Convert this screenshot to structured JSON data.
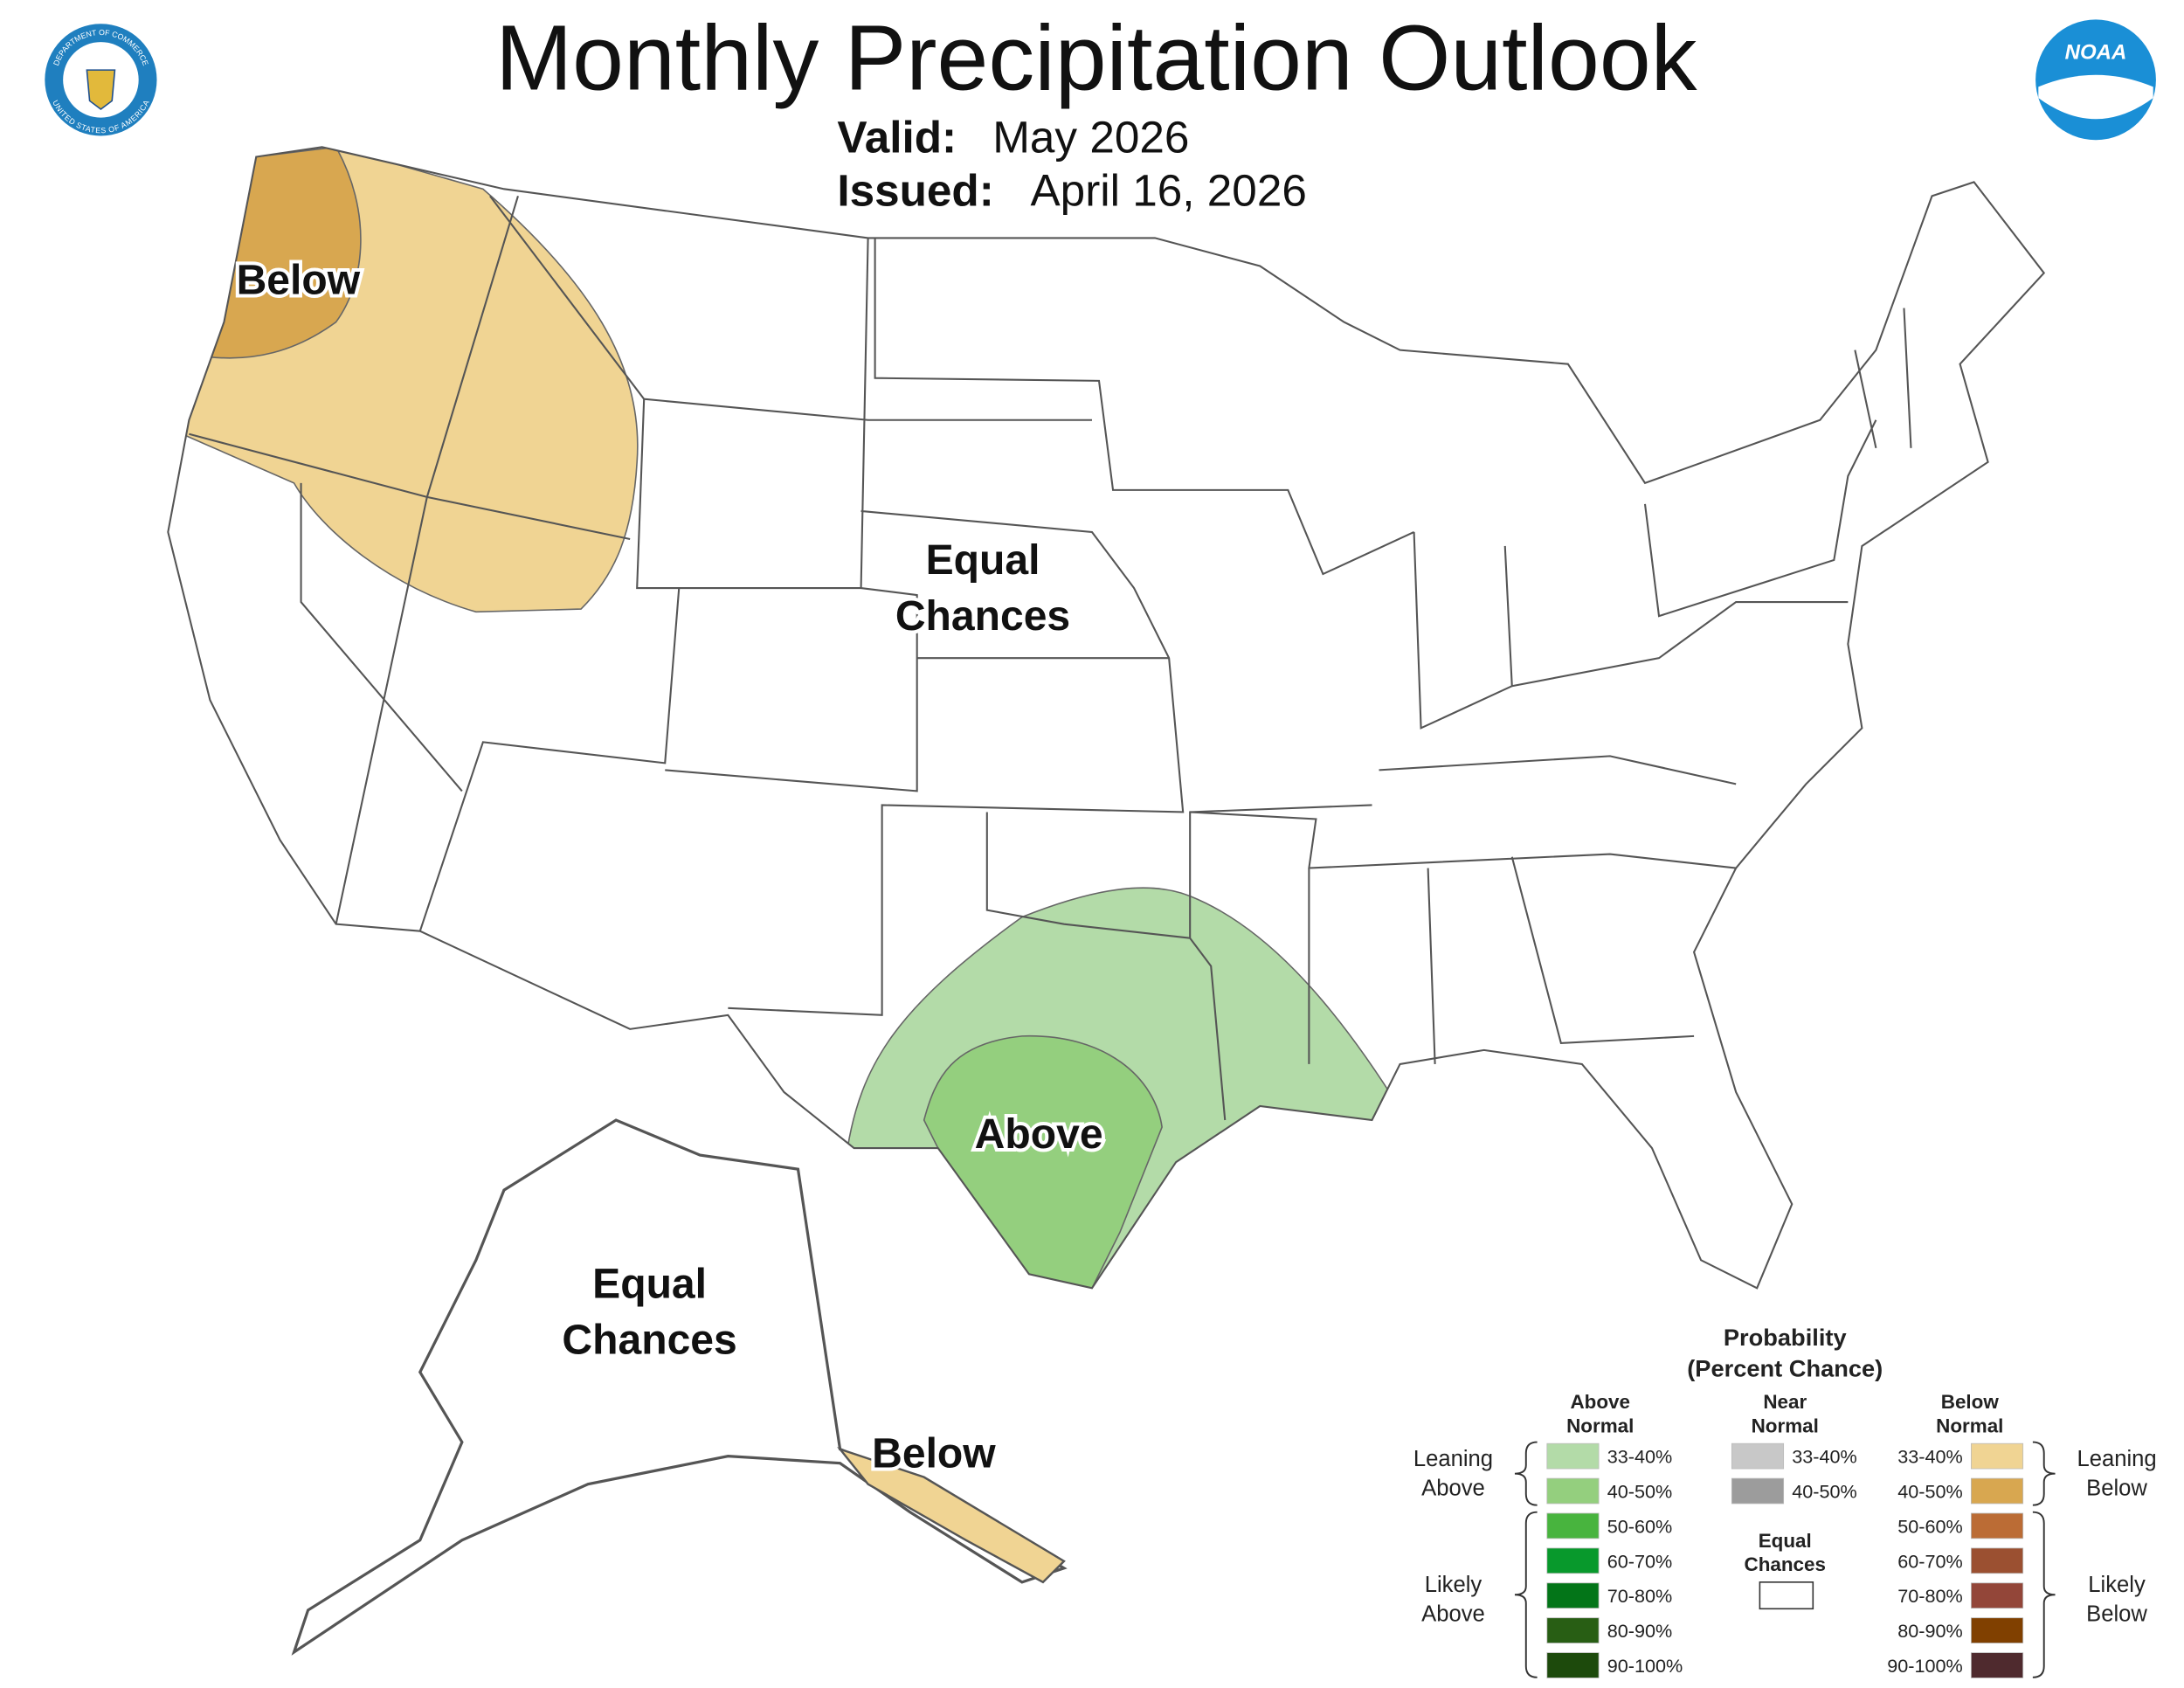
{
  "header": {
    "title": "Monthly Precipitation Outlook",
    "valid_label": "Valid:",
    "valid": "May 2026",
    "issued_label": "Issued:",
    "issued": "April 16, 2026"
  },
  "logos": {
    "commerce_top": "DEPARTMENT OF COMMERCE",
    "commerce_bottom": "UNITED STATES OF AMERICA",
    "noaa": "NOAA"
  },
  "map_labels": [
    [
      "Below"
    ],
    [
      "Equal",
      "Chances"
    ],
    [
      "Above"
    ],
    [
      "Equal",
      "Chances"
    ],
    [
      "Below"
    ]
  ],
  "legend": {
    "title": [
      "Probability",
      "(Percent Chance)"
    ],
    "above": {
      "heading": [
        "Above",
        "Normal"
      ],
      "items": [
        {
          "label": "33-40%",
          "color": "#b3dba8"
        },
        {
          "label": "40-50%",
          "color": "#94cf7e"
        },
        {
          "label": "50-60%",
          "color": "#48b43e"
        },
        {
          "label": "60-70%",
          "color": "#08992c"
        },
        {
          "label": "70-80%",
          "color": "#037518"
        },
        {
          "label": "80-90%",
          "color": "#285e14"
        },
        {
          "label": "90-100%",
          "color": "#1d4a0c"
        }
      ]
    },
    "near": {
      "heading": [
        "Near",
        "Normal"
      ],
      "items": [
        {
          "label": "33-40%",
          "color": "#c8c8c8"
        },
        {
          "label": "40-50%",
          "color": "#9c9c9c"
        }
      ]
    },
    "below": {
      "heading": [
        "Below",
        "Normal"
      ],
      "items": [
        {
          "label": "33-40%",
          "color": "#f0d493"
        },
        {
          "label": "40-50%",
          "color": "#d8a750"
        },
        {
          "label": "50-60%",
          "color": "#bb6c35"
        },
        {
          "label": "60-70%",
          "color": "#9b5031"
        },
        {
          "label": "70-80%",
          "color": "#934639"
        },
        {
          "label": "80-90%",
          "color": "#804000"
        },
        {
          "label": "90-100%",
          "color": "#4f2a2e"
        }
      ]
    },
    "equal": {
      "heading": [
        "Equal",
        "Chances"
      ],
      "color": "#ffffff"
    },
    "leaning_above": [
      "Leaning",
      "Above"
    ],
    "likely_above": [
      "Likely",
      "Above"
    ],
    "leaning_below": [
      "Leaning",
      "Below"
    ],
    "likely_below": [
      "Likely",
      "Below"
    ]
  }
}
